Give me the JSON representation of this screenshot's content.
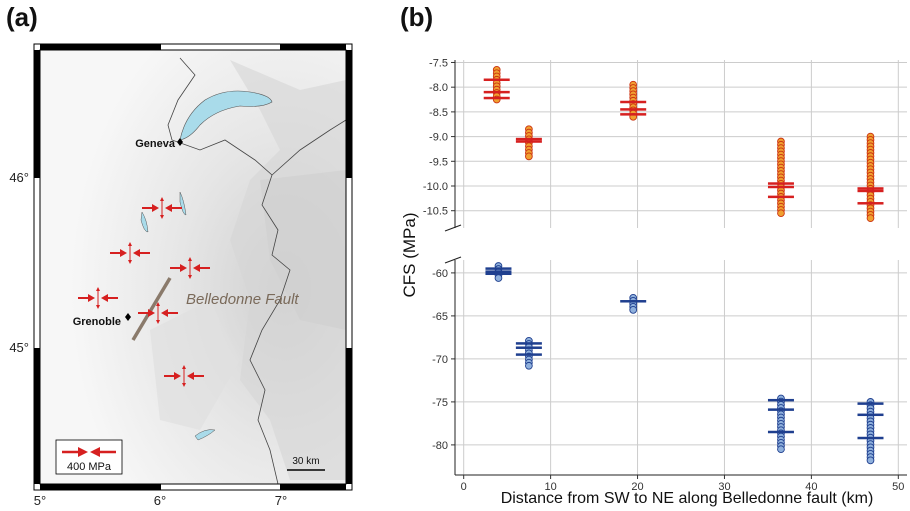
{
  "panels": {
    "a": "(a)",
    "b": "(b)"
  },
  "map": {
    "lon_ticks": [
      "5°",
      "6°",
      "7°"
    ],
    "lat_ticks": [
      "46°",
      "45°"
    ],
    "cities": [
      {
        "name": "Geneva"
      },
      {
        "name": "Grenoble"
      }
    ],
    "fault_label": "Belledonne Fault",
    "legend_label": "400 MPa",
    "scale_label": "30 km",
    "colors": {
      "fault": "#8a7a6b",
      "arrow": "#d62020",
      "lake": "#a9dbea"
    }
  },
  "chart_data": [
    {
      "type": "scatter",
      "title": "",
      "xlabel": "Distance from SW to NE along Belledonne fault (km)",
      "ylabel": "CFS (MPa)",
      "xlim": [
        -1,
        51
      ],
      "x_ticks": [
        0,
        10,
        20,
        30,
        40,
        50
      ],
      "grid": true,
      "series": [
        {
          "color": "#f0a030",
          "edge": "#cc3311",
          "ylim": [
            -10.85,
            -7.45
          ],
          "y_ticks": [
            -7.5,
            -8.0,
            -8.5,
            -9.0,
            -9.5,
            -10.0,
            -10.5
          ],
          "y_tick_labels": [
            "-7.5",
            "-8.0",
            "-8.5",
            "-9.0",
            "-9.5",
            "-10.0",
            "-10.5"
          ],
          "groups": [
            {
              "x": 3.8,
              "y_min": -8.25,
              "y_max": -7.65,
              "bars": [
                -7.85,
                -8.1,
                -8.22
              ]
            },
            {
              "x": 7.5,
              "y_min": -9.4,
              "y_max": -8.85,
              "bars": [
                -9.05,
                -9.1
              ]
            },
            {
              "x": 19.5,
              "y_min": -8.6,
              "y_max": -7.95,
              "bars": [
                -8.3,
                -8.45,
                -8.55
              ]
            },
            {
              "x": 36.5,
              "y_min": -10.55,
              "y_max": -9.1,
              "bars": [
                -9.95,
                -10.02,
                -10.22
              ]
            },
            {
              "x": 46.8,
              "y_min": -10.65,
              "y_max": -9.0,
              "bars": [
                -10.05,
                -10.1,
                -10.35
              ]
            }
          ]
        },
        {
          "color": "#8fb0dc",
          "edge": "#1f3f8f",
          "ylim": [
            -83.5,
            -58.5
          ],
          "y_ticks": [
            -60,
            -65,
            -70,
            -75,
            -80
          ],
          "y_tick_labels": [
            "-60",
            "-65",
            "-70",
            "-75",
            "-80"
          ],
          "groups": [
            {
              "x": 4.0,
              "y_min": -60.6,
              "y_max": -59.2,
              "bars": [
                -59.5,
                -59.85,
                -60.1
              ]
            },
            {
              "x": 7.5,
              "y_min": -70.8,
              "y_max": -67.9,
              "bars": [
                -68.2,
                -68.7,
                -69.5
              ]
            },
            {
              "x": 19.5,
              "y_min": -64.3,
              "y_max": -62.9,
              "bars": [
                -63.3
              ]
            },
            {
              "x": 36.5,
              "y_min": -80.5,
              "y_max": -74.6,
              "bars": [
                -74.8,
                -75.9,
                -78.5
              ]
            },
            {
              "x": 46.8,
              "y_min": -81.8,
              "y_max": -75.0,
              "bars": [
                -75.2,
                -76.5,
                -79.2
              ]
            }
          ]
        }
      ]
    }
  ]
}
